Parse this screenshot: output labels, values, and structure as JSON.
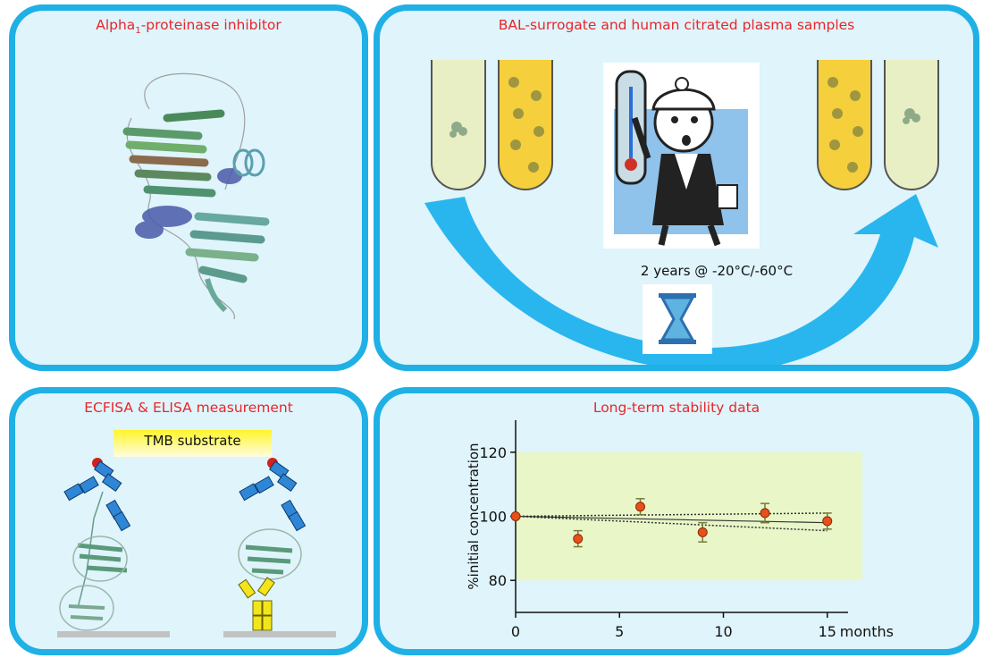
{
  "panels": {
    "protein": {
      "title_main": "Alpha",
      "title_sub": "1",
      "title_rest": "-proteinase inhibitor"
    },
    "samples": {
      "title": "BAL-surrogate and human citrated plasma samples",
      "storage_label": "2 years @ -20°C/-60°C"
    },
    "assay": {
      "title": "ECFISA & ELISA measurement",
      "substrate_label": "TMB substrate"
    },
    "stability": {
      "title": "Long-term stability data"
    }
  },
  "colors": {
    "border": "#1fb0e6",
    "panel_bg": "#dff4fb",
    "title": "#e8262b",
    "plot_band": "#e8f6c8",
    "point": "#e8501a"
  },
  "chart_data": {
    "type": "scatter",
    "title": "Long-term stability data",
    "xlabel": "months",
    "ylabel": "%initial concentration",
    "xlim": [
      0,
      16
    ],
    "ylim": [
      70,
      130
    ],
    "xticks": [
      0,
      5,
      10,
      15
    ],
    "yticks": [
      80,
      100,
      120
    ],
    "acceptance_band": [
      80,
      120
    ],
    "points": [
      {
        "x": 0,
        "y": 100,
        "err": 0
      },
      {
        "x": 3,
        "y": 93,
        "err": 2.5
      },
      {
        "x": 6,
        "y": 103,
        "err": 2.5
      },
      {
        "x": 9,
        "y": 95,
        "err": 3
      },
      {
        "x": 12,
        "y": 101,
        "err": 3
      },
      {
        "x": 15,
        "y": 98.5,
        "err": 2.5
      }
    ],
    "trend": {
      "start": 100.0,
      "end": 98.0,
      "ci_upper_end": 101.0,
      "ci_lower_end": 95.5
    }
  }
}
